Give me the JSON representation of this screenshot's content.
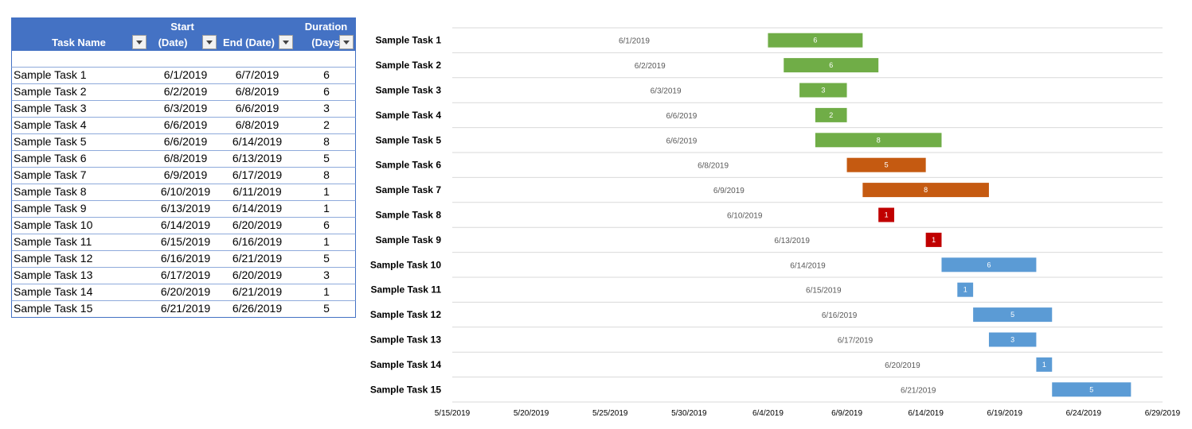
{
  "table": {
    "headers": {
      "task_name": "Task Name",
      "start_l1": "Start",
      "start_l2": "(Date)",
      "end_l2": "End  (Date)",
      "duration_l1": "Duration",
      "duration_l2": "(Days)"
    },
    "rows": [
      {
        "name": "Sample Task 1",
        "start": "6/1/2019",
        "end": "6/7/2019",
        "duration": "6"
      },
      {
        "name": "Sample Task 2",
        "start": "6/2/2019",
        "end": "6/8/2019",
        "duration": "6"
      },
      {
        "name": "Sample Task 3",
        "start": "6/3/2019",
        "end": "6/6/2019",
        "duration": "3"
      },
      {
        "name": "Sample Task 4",
        "start": "6/6/2019",
        "end": "6/8/2019",
        "duration": "2"
      },
      {
        "name": "Sample Task 5",
        "start": "6/6/2019",
        "end": "6/14/2019",
        "duration": "8"
      },
      {
        "name": "Sample Task 6",
        "start": "6/8/2019",
        "end": "6/13/2019",
        "duration": "5"
      },
      {
        "name": "Sample Task 7",
        "start": "6/9/2019",
        "end": "6/17/2019",
        "duration": "8"
      },
      {
        "name": "Sample Task 8",
        "start": "6/10/2019",
        "end": "6/11/2019",
        "duration": "1"
      },
      {
        "name": "Sample Task 9",
        "start": "6/13/2019",
        "end": "6/14/2019",
        "duration": "1"
      },
      {
        "name": "Sample Task 10",
        "start": "6/14/2019",
        "end": "6/20/2019",
        "duration": "6"
      },
      {
        "name": "Sample Task 11",
        "start": "6/15/2019",
        "end": "6/16/2019",
        "duration": "1"
      },
      {
        "name": "Sample Task 12",
        "start": "6/16/2019",
        "end": "6/21/2019",
        "duration": "5"
      },
      {
        "name": "Sample Task 13",
        "start": "6/17/2019",
        "end": "6/20/2019",
        "duration": "3"
      },
      {
        "name": "Sample Task 14",
        "start": "6/20/2019",
        "end": "6/21/2019",
        "duration": "1"
      },
      {
        "name": "Sample Task 15",
        "start": "6/21/2019",
        "end": "6/26/2019",
        "duration": "5"
      }
    ]
  },
  "chart_data": {
    "type": "bar",
    "orientation": "horizontal-stacked-gantt",
    "categories": [
      "Sample Task 1",
      "Sample Task 2",
      "Sample Task 3",
      "Sample Task 4",
      "Sample Task 5",
      "Sample Task 6",
      "Sample Task 7",
      "Sample Task 8",
      "Sample Task 9",
      "Sample Task 10",
      "Sample Task 11",
      "Sample Task 12",
      "Sample Task 13",
      "Sample Task 14",
      "Sample Task 15"
    ],
    "start_labels": [
      "6/1/2019",
      "6/2/2019",
      "6/3/2019",
      "6/6/2019",
      "6/6/2019",
      "6/8/2019",
      "6/9/2019",
      "6/10/2019",
      "6/13/2019",
      "6/14/2019",
      "6/15/2019",
      "6/16/2019",
      "6/17/2019",
      "6/20/2019",
      "6/21/2019"
    ],
    "bar_start_dates": [
      "2019-06-04",
      "2019-06-05",
      "2019-06-06",
      "2019-06-07",
      "2019-06-07",
      "2019-06-09",
      "2019-06-10",
      "2019-06-11",
      "2019-06-14",
      "2019-06-15",
      "2019-06-16",
      "2019-06-17",
      "2019-06-18",
      "2019-06-21",
      "2019-06-22"
    ],
    "durations": [
      6,
      6,
      3,
      2,
      8,
      5,
      8,
      1,
      1,
      6,
      1,
      5,
      3,
      1,
      5
    ],
    "bar_colors": [
      "#70ad47",
      "#70ad47",
      "#70ad47",
      "#70ad47",
      "#70ad47",
      "#c55a11",
      "#c55a11",
      "#c00000",
      "#c00000",
      "#5b9bd5",
      "#5b9bd5",
      "#5b9bd5",
      "#5b9bd5",
      "#5b9bd5",
      "#5b9bd5"
    ],
    "xlim": [
      "2019-05-15",
      "2019-06-29"
    ],
    "x_ticks": [
      "5/15/2019",
      "5/20/2019",
      "5/25/2019",
      "5/30/2019",
      "6/4/2019",
      "6/9/2019",
      "6/14/2019",
      "6/19/2019",
      "6/24/2019",
      "6/29/2019"
    ],
    "grid": "horizontal",
    "title": "",
    "xlabel": "",
    "ylabel": ""
  },
  "colors": {
    "table_header": "#4472c4",
    "green": "#70ad47",
    "orange": "#c55a11",
    "red": "#c00000",
    "blue": "#5b9bd5"
  }
}
